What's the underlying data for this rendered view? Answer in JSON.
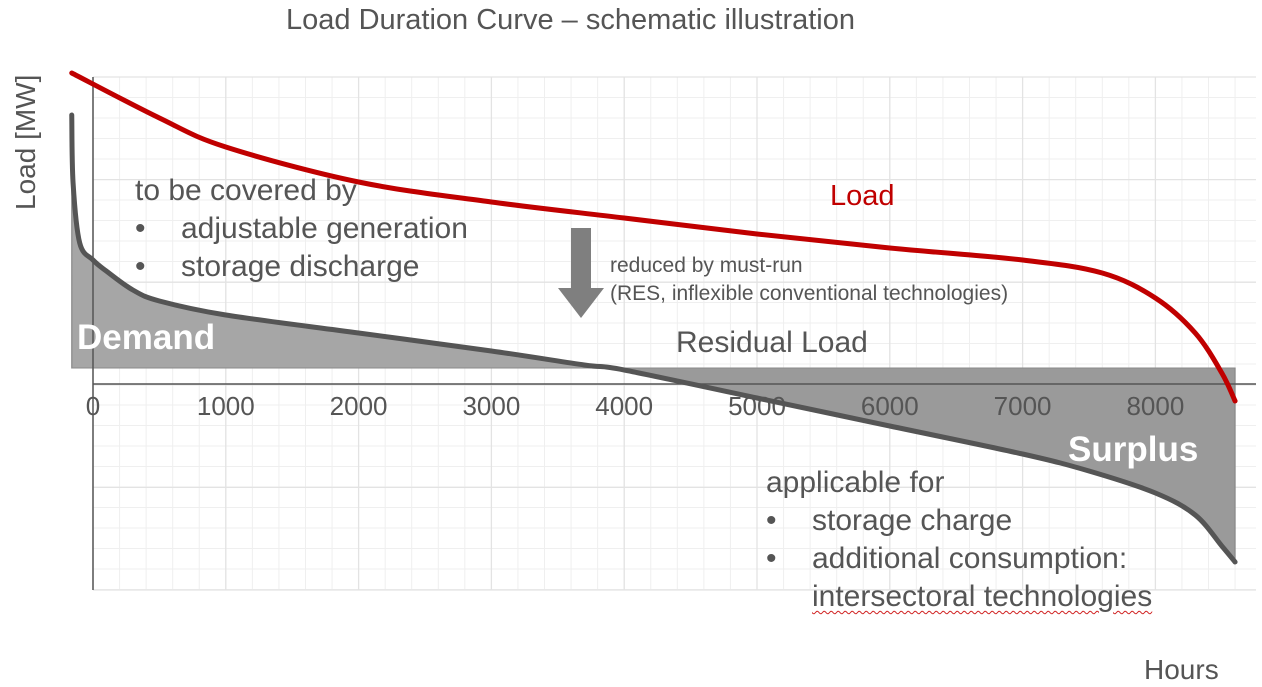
{
  "chart_data": {
    "type": "line",
    "title": "Load Duration Curve – schematic illustration",
    "xlabel": "Hours",
    "ylabel": "Load [MW]",
    "x_ticks": [
      0,
      1000,
      2000,
      3000,
      4000,
      5000,
      6000,
      7000,
      8000
    ],
    "xlim": [
      0,
      8760
    ],
    "grid": true,
    "series": [
      {
        "name": "Load",
        "color": "#c00000",
        "x": [
          -160,
          500,
          1000,
          2000,
          3000,
          4000,
          5000,
          6000,
          7000,
          7600,
          8000,
          8300,
          8500,
          8600
        ],
        "y": [
          2.95,
          2.5,
          2.21,
          1.86,
          1.66,
          1.5,
          1.34,
          1.2,
          1.08,
          0.95,
          0.7,
          0.35,
          -0.05,
          -0.33
        ]
      },
      {
        "name": "Residual Load",
        "color": "#555555",
        "x": [
          -160,
          -150,
          -100,
          0,
          100,
          300,
          500,
          1000,
          2000,
          3000,
          3700,
          4000,
          5000,
          6000,
          7000,
          7500,
          8000,
          8300,
          8500,
          8600
        ],
        "y": [
          2.53,
          1.85,
          1.25,
          1.08,
          0.97,
          0.78,
          0.67,
          0.53,
          0.35,
          0.17,
          0.03,
          -0.02,
          -0.3,
          -0.58,
          -0.86,
          -1.03,
          -1.25,
          -1.47,
          -1.78,
          -1.94
        ]
      }
    ],
    "annotations": {
      "covered_heading": "to be covered by",
      "covered_items": [
        "adjustable generation",
        "storage discharge"
      ],
      "reduced_line1": "reduced by must-run",
      "reduced_line2": "(RES, inflexible conventional technologies)",
      "demand": "Demand",
      "surplus": "Surplus",
      "residual": "Residual Load",
      "load": "Load",
      "applicable_heading": "applicable for",
      "applicable_items": [
        "storage charge",
        "additional consumption:"
      ],
      "applicable_continuation": "intersectoral technologies",
      "bullet": "•"
    },
    "colors": {
      "load": "#c00000",
      "residual": "#555555",
      "fill": "#a6a6a6",
      "arrow": "#7f7f7f",
      "grid": "#e3e3e3"
    }
  }
}
